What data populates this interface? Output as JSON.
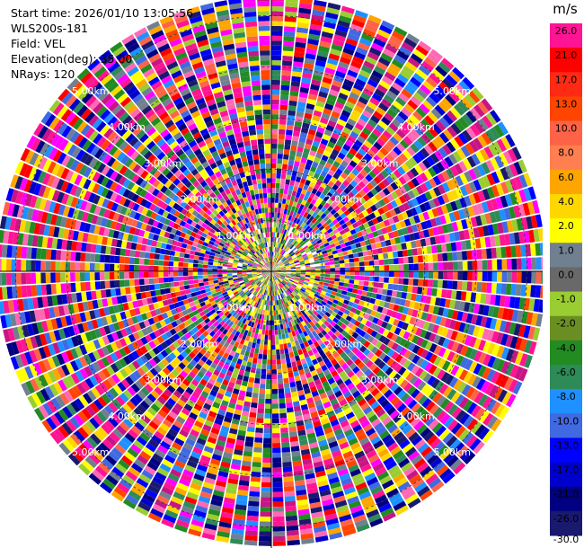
{
  "header": {
    "start_time": "Start time: 2026/01/10 13:05:56",
    "instrument": "WLS200s-181",
    "field": "Field: VEL",
    "elevation": "Elevation(deg): 35.00",
    "nrays": "NRays: 120"
  },
  "colorbar": {
    "unit": "m/s",
    "labels": [
      "26.0",
      "21.0",
      "17.0",
      "13.0",
      "10.0",
      "8.0",
      "6.0",
      "4.0",
      "2.0",
      "1.0",
      "0.0",
      "-1.0",
      "-2.0",
      "-4.0",
      "-6.0",
      "-8.0",
      "-10.0",
      "-13.0",
      "-17.0",
      "-21.0",
      "-26.0",
      "-30.0"
    ],
    "colors": [
      "#ff1493",
      "#ff0000",
      "#ff2a14",
      "#ff4500",
      "#ff6347",
      "#ff7f50",
      "#ffa500",
      "#ffd700",
      "#ffff00",
      "#708090",
      "#696969",
      "#9acd32",
      "#6b8e23",
      "#228b22",
      "#2e8b57",
      "#1e90ff",
      "#4169e1",
      "#0000ff",
      "#0000cd",
      "#000080",
      "#191970"
    ]
  },
  "chart_data": {
    "type": "ppi",
    "field": "VEL",
    "units": "m/s",
    "elevation_deg": 35.0,
    "nrays": 120,
    "range_rings_km": [
      1.0,
      2.0,
      3.0,
      4.0,
      5.0
    ],
    "ring_labels": [
      "1.00km",
      "2.00km",
      "3.00km",
      "4.00km",
      "5.00km"
    ],
    "value_range": [
      -30.0,
      30.0
    ]
  }
}
